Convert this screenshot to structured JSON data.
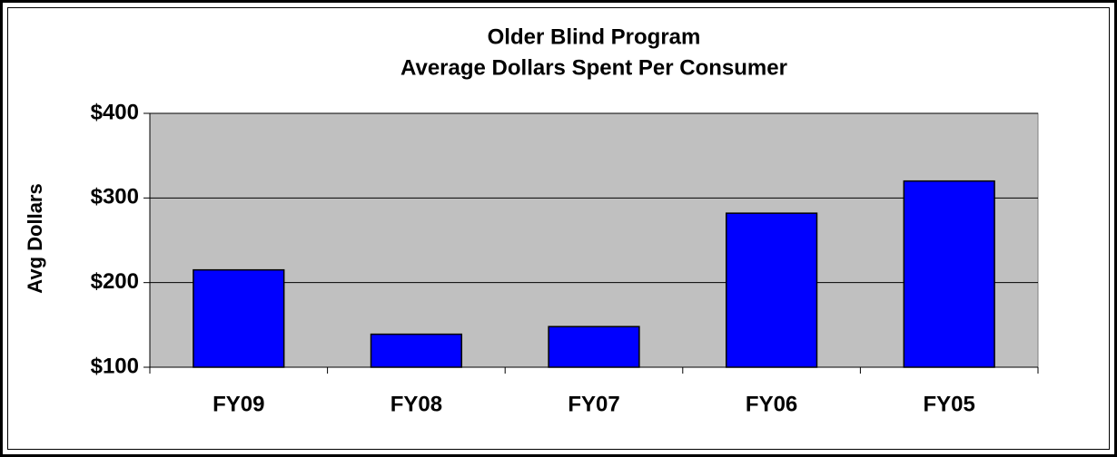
{
  "chart_data": {
    "type": "bar",
    "title": "Older Blind Program",
    "subtitle": "Average Dollars Spent Per Consumer",
    "y_label": "Avg Dollars",
    "categories": [
      "FY09",
      "FY08",
      "FY07",
      "FY06",
      "FY05"
    ],
    "values": [
      215,
      139,
      148,
      282,
      320
    ],
    "color": "#0000ff",
    "ylim": [
      100,
      400
    ],
    "yticks": [
      {
        "value": 100,
        "label": "$100"
      },
      {
        "value": 200,
        "label": "$200"
      },
      {
        "value": 300,
        "label": "$300"
      },
      {
        "value": 400,
        "label": "$400"
      }
    ],
    "grid": true
  }
}
